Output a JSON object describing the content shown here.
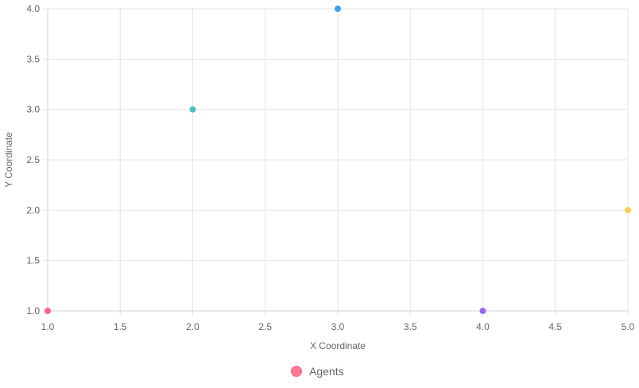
{
  "chart_data": {
    "type": "scatter",
    "xlabel": "X Coordinate",
    "ylabel": "Y Coordinate",
    "xlim": [
      1.0,
      5.0
    ],
    "ylim": [
      1.0,
      4.0
    ],
    "x_ticks": [
      "1.0",
      "1.5",
      "2.0",
      "2.5",
      "3.0",
      "3.5",
      "4.0",
      "4.5",
      "5.0"
    ],
    "y_ticks": [
      "1.0",
      "1.5",
      "2.0",
      "2.5",
      "3.0",
      "3.5",
      "4.0"
    ],
    "grid": true,
    "legend_position": "bottom",
    "series": [
      {
        "name": "Agents",
        "legend_color": "#ff6384",
        "points": [
          {
            "x": 1,
            "y": 1,
            "color": "#ff6384"
          },
          {
            "x": 2,
            "y": 3,
            "color": "#4bc0c0"
          },
          {
            "x": 3,
            "y": 4,
            "color": "#36a2eb"
          },
          {
            "x": 4,
            "y": 1,
            "color": "#9966ff"
          },
          {
            "x": 5,
            "y": 2,
            "color": "#ffcd56"
          }
        ]
      }
    ]
  }
}
